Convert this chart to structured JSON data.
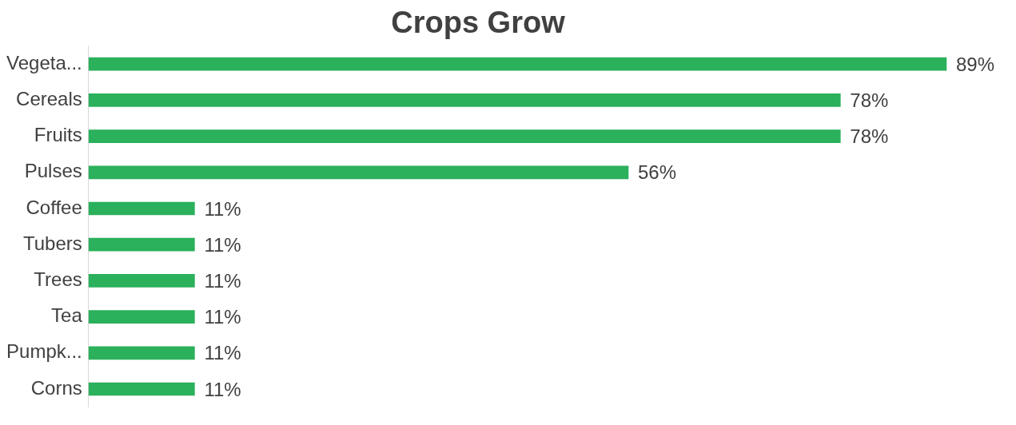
{
  "chart_data": {
    "type": "bar",
    "orientation": "horizontal",
    "title": "Crops Grow",
    "categories": [
      "Vegeta...",
      "Cereals",
      "Fruits",
      "Pulses",
      "Coffee",
      "Tubers",
      "Trees",
      "Tea",
      "Pumpk...",
      "Corns"
    ],
    "values": [
      89,
      78,
      78,
      56,
      11,
      11,
      11,
      11,
      11,
      11
    ],
    "value_labels": [
      "89%",
      "78%",
      "78%",
      "56%",
      "11%",
      "11%",
      "11%",
      "11%",
      "11%",
      "11%"
    ],
    "color": "#2bb05c",
    "legend": false
  }
}
